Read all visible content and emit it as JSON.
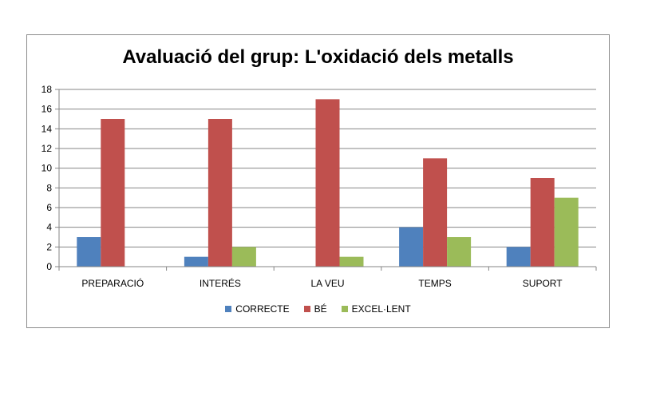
{
  "chart_data": {
    "type": "bar",
    "title": "Avaluació del grup: L'oxidació dels metalls",
    "categories": [
      "PREPARACIÓ",
      "INTERÉS",
      "LA VEU",
      "TEMPS",
      "SUPORT"
    ],
    "series": [
      {
        "name": "CORRECTE",
        "color": "#4f81bd",
        "values": [
          3,
          1,
          0,
          4,
          2
        ]
      },
      {
        "name": "BÉ",
        "color": "#c0504d",
        "values": [
          15,
          15,
          17,
          11,
          9
        ]
      },
      {
        "name": "EXCEL·LENT",
        "color": "#9bbb59",
        "values": [
          0,
          2,
          1,
          3,
          7
        ]
      }
    ],
    "yticks": [
      "0",
      "2",
      "4",
      "6",
      "8",
      "10",
      "12",
      "14",
      "16",
      "18"
    ],
    "ylim": [
      0,
      18
    ],
    "grid": true,
    "legend": "bottom"
  }
}
